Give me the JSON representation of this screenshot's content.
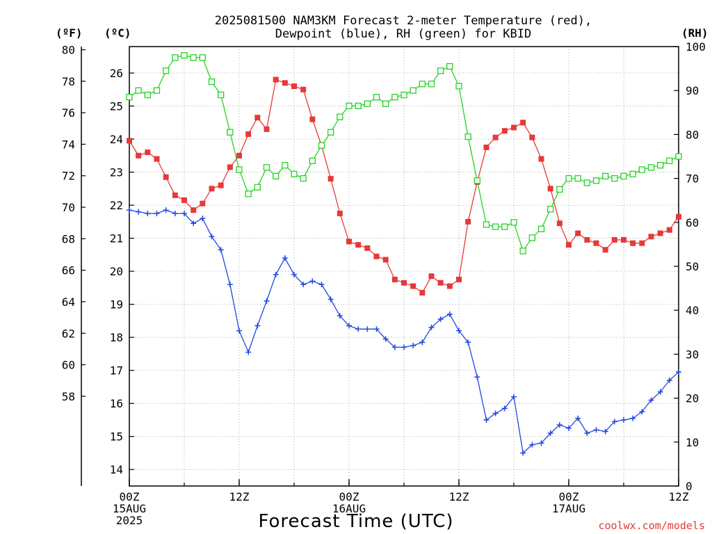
{
  "title_line1": "2025081500 NAM3KM Forecast 2-meter Temperature (red),",
  "title_line2": "Dewpoint (blue), RH (green) for KBID",
  "unit_f": "(ºF)",
  "unit_c": "(ºC)",
  "unit_rh": "(RH)",
  "xlabel": "Forecast Time (UTC)",
  "credit": "coolwx.com/models",
  "chart_data": {
    "type": "line",
    "x_unit": "forecast hour",
    "xlim": [
      0,
      60
    ],
    "x_ticks": [
      {
        "x": 0,
        "lines": [
          "00Z",
          "15AUG",
          "2025"
        ]
      },
      {
        "x": 12,
        "lines": [
          "12Z"
        ]
      },
      {
        "x": 24,
        "lines": [
          "00Z",
          "16AUG"
        ]
      },
      {
        "x": 36,
        "lines": [
          "12Z"
        ]
      },
      {
        "x": 48,
        "lines": [
          "00Z",
          "17AUG"
        ]
      },
      {
        "x": 60,
        "lines": [
          "12Z"
        ]
      }
    ],
    "left_axis_c": {
      "label": "(ºC)",
      "ylim": [
        13.5,
        26.8
      ],
      "ticks": [
        "14",
        "15",
        "16",
        "17",
        "18",
        "19",
        "20",
        "21",
        "22",
        "23",
        "24",
        "25",
        "26"
      ]
    },
    "left_axis_f": {
      "label": "(ºF)",
      "ylim": [
        52.3,
        80.2
      ],
      "ticks": [
        "58",
        "60",
        "62",
        "64",
        "66",
        "68",
        "70",
        "72",
        "74",
        "76",
        "78",
        "80"
      ]
    },
    "right_axis_rh": {
      "label": "(RH)",
      "ylim": [
        0,
        100
      ],
      "ticks": [
        "0",
        "10",
        "20",
        "30",
        "40",
        "50",
        "60",
        "70",
        "80",
        "90",
        "100"
      ]
    },
    "grid": true,
    "series": [
      {
        "color": "#e83838",
        "marker": "filled-square",
        "axis": "celsius",
        "x": [
          0,
          1,
          2,
          3,
          4,
          5,
          6,
          7,
          8,
          9,
          10,
          11,
          12,
          13,
          14,
          15,
          16,
          17,
          18,
          19,
          20,
          21,
          22,
          23,
          24,
          25,
          26,
          27,
          28,
          29,
          30,
          31,
          32,
          33,
          34,
          35,
          36,
          37,
          38,
          39,
          40,
          41,
          42,
          43,
          44,
          45,
          46,
          47,
          48,
          49,
          50,
          51,
          52,
          53,
          54,
          55,
          56,
          57,
          58,
          59,
          60
        ],
        "values": [
          23.95,
          23.5,
          23.6,
          23.4,
          22.85,
          22.3,
          22.15,
          21.85,
          22.05,
          22.5,
          22.6,
          23.15,
          23.5,
          24.15,
          24.65,
          24.3,
          25.8,
          25.7,
          25.6,
          25.5,
          24.6,
          23.8,
          22.8,
          21.75,
          20.9,
          20.8,
          20.7,
          20.45,
          20.35,
          19.75,
          19.65,
          19.55,
          19.35,
          19.85,
          19.65,
          19.55,
          19.75,
          21.5,
          22.7,
          23.75,
          24.05,
          24.25,
          24.35,
          24.5,
          24.05,
          23.4,
          22.5,
          21.45,
          20.8,
          21.15,
          20.95,
          20.85,
          20.65,
          20.95,
          20.95,
          20.85,
          20.85,
          21.05,
          21.15,
          21.25,
          21.65
        ]
      },
      {
        "color": "#2046e0",
        "marker": "plus",
        "axis": "celsius",
        "x": [
          0,
          1,
          2,
          3,
          4,
          5,
          6,
          7,
          8,
          9,
          10,
          11,
          12,
          13,
          14,
          15,
          16,
          17,
          18,
          19,
          20,
          21,
          22,
          23,
          24,
          25,
          26,
          27,
          28,
          29,
          30,
          31,
          32,
          33,
          34,
          35,
          36,
          37,
          38,
          39,
          40,
          41,
          42,
          43,
          44,
          45,
          46,
          47,
          48,
          49,
          50,
          51,
          52,
          53,
          54,
          55,
          56,
          57,
          58,
          59,
          60
        ],
        "values": [
          21.85,
          21.8,
          21.75,
          21.75,
          21.85,
          21.75,
          21.75,
          21.45,
          21.6,
          21.05,
          20.65,
          19.6,
          18.2,
          17.55,
          18.35,
          19.1,
          19.9,
          20.4,
          19.9,
          19.6,
          19.7,
          19.6,
          19.15,
          18.65,
          18.35,
          18.25,
          18.25,
          18.25,
          17.95,
          17.7,
          17.7,
          17.75,
          17.85,
          18.3,
          18.55,
          18.7,
          18.2,
          17.85,
          16.8,
          15.5,
          15.7,
          15.85,
          16.2,
          14.5,
          14.75,
          14.8,
          15.1,
          15.35,
          15.25,
          15.55,
          15.1,
          15.2,
          15.15,
          15.45,
          15.5,
          15.55,
          15.75,
          16.1,
          16.35,
          16.7,
          16.95
        ]
      },
      {
        "color": "#22d422",
        "marker": "open-square",
        "axis": "rh",
        "x": [
          0,
          1,
          2,
          3,
          4,
          5,
          6,
          7,
          8,
          9,
          10,
          11,
          12,
          13,
          14,
          15,
          16,
          17,
          18,
          19,
          20,
          21,
          22,
          23,
          24,
          25,
          26,
          27,
          28,
          29,
          30,
          31,
          32,
          33,
          34,
          35,
          36,
          37,
          38,
          39,
          40,
          41,
          42,
          43,
          44,
          45,
          46,
          47,
          48,
          49,
          50,
          51,
          52,
          53,
          54,
          55,
          56,
          57,
          58,
          59,
          60
        ],
        "values": [
          88.5,
          90,
          89,
          90,
          94.5,
          97.5,
          98,
          97.5,
          97.5,
          92,
          89,
          80.5,
          72,
          66.5,
          68,
          72.5,
          70.5,
          73,
          71,
          70,
          74,
          77.5,
          80.5,
          84,
          86.5,
          86.5,
          87,
          88.5,
          87,
          88.5,
          89,
          90,
          91.5,
          91.5,
          94.5,
          95.5,
          91,
          79.5,
          69.5,
          59.5,
          59,
          59,
          60,
          53.5,
          56.5,
          58.5,
          63,
          67.5,
          70,
          70,
          69,
          69.5,
          70.5,
          70,
          70.5,
          71,
          72,
          72.5,
          73,
          74,
          75
        ]
      }
    ]
  }
}
